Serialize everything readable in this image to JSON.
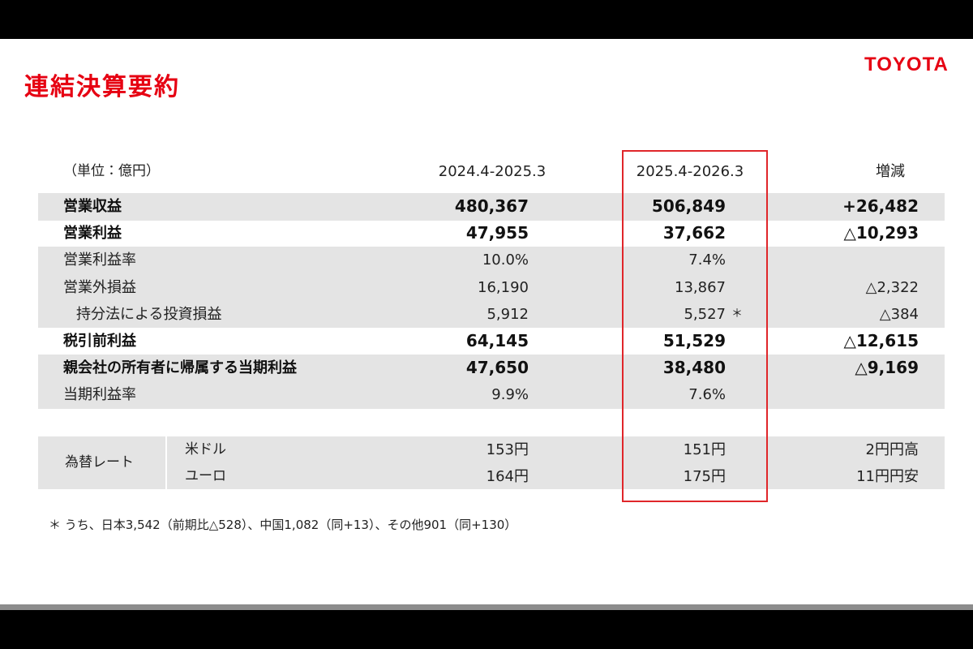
{
  "header": {
    "title": "連結決算要約",
    "logo": "TOYOTA"
  },
  "table": {
    "unit": "（単位：億円）",
    "columns": [
      "2024.4-2025.3",
      "2025.4-2026.3",
      "増減"
    ],
    "rows": [
      {
        "label": "営業収益",
        "values": [
          "480,367",
          "506,849",
          "+26,482"
        ],
        "bold": true,
        "shaded": true
      },
      {
        "label": "営業利益",
        "values": [
          "47,955",
          "37,662",
          "△10,293"
        ],
        "bold": true,
        "shaded": false
      },
      {
        "label": "営業利益率",
        "values": [
          "10.0%",
          "7.4%"
        ],
        "bold": false,
        "shaded": true
      },
      {
        "label": "営業外損益",
        "values": [
          "16,190",
          "13,867",
          "△2,322"
        ],
        "bold": false,
        "shaded": true
      },
      {
        "label": "持分法による投資損益",
        "values": [
          "5,912",
          "5,527",
          "△384"
        ],
        "bold": false,
        "shaded": true,
        "indent": 1,
        "mark": "＊"
      },
      {
        "label": "税引前利益",
        "values": [
          "64,145",
          "51,529",
          "△12,615"
        ],
        "bold": true,
        "shaded": false
      },
      {
        "label": "親会社の所有者に帰属する当期利益",
        "values": [
          "47,650",
          "38,480",
          "△9,169"
        ],
        "bold": true,
        "shaded": true
      },
      {
        "label": "当期利益率",
        "values": [
          "9.9%",
          "7.6%"
        ],
        "bold": false,
        "shaded": true
      }
    ],
    "fx": {
      "label": "為替レート",
      "rows": [
        {
          "label": "米ドル",
          "values": [
            "153円",
            "151円",
            "2円円高"
          ]
        },
        {
          "label": "ユーロ",
          "values": [
            "164円",
            "175円",
            "11円円安"
          ]
        }
      ]
    }
  },
  "footnote": "＊ うち、日本3,542（前期比△528）、中国1,082（同+13）、その他901（同+130）"
}
